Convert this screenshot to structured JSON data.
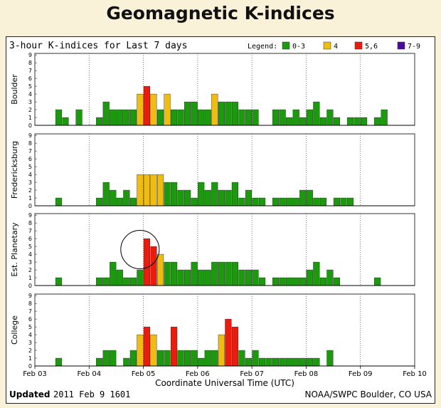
{
  "page": {
    "title": "Geomagnetic K-indices"
  },
  "chart_data": {
    "type": "bar",
    "title": "3-hour K-indices for Last 7 days",
    "legend": {
      "title": "Legend:",
      "items": [
        {
          "label": "0-3",
          "color": "#1a9a0c"
        },
        {
          "label": "4",
          "color": "#f0bc10"
        },
        {
          "label": "5,6",
          "color": "#ee1a0c"
        },
        {
          "label": "7-9",
          "color": "#4a0a9a"
        }
      ],
      "placement": "top-right"
    },
    "xlabel": "Coordinate Universal Time (UTC)",
    "x_ticks": [
      "Feb 03",
      "Feb 04",
      "Feb 05",
      "Feb 06",
      "Feb 07",
      "Feb 08",
      "Feb 09",
      "Feb 10"
    ],
    "ylim": [
      0,
      9
    ],
    "y_ticks": [
      "0",
      "1",
      "2",
      "3",
      "4",
      "5",
      "6",
      "7",
      "8",
      "9"
    ],
    "grid": "vertical dotted at day boundaries",
    "panels": [
      {
        "name": "Boulder",
        "values": [
          0,
          0,
          0,
          2,
          1,
          0,
          2,
          0,
          0,
          1,
          3,
          2,
          2,
          2,
          2,
          4,
          5,
          4,
          2,
          4,
          2,
          2,
          3,
          3,
          2,
          2,
          4,
          3,
          3,
          3,
          2,
          2,
          2,
          0,
          0,
          2,
          2,
          1,
          2,
          1,
          2,
          3,
          1,
          2,
          1,
          0,
          1,
          1,
          1,
          0,
          1,
          2,
          0
        ]
      },
      {
        "name": "Fredericksburg",
        "values": [
          0,
          0,
          0,
          1,
          0,
          0,
          0,
          0,
          0,
          1,
          3,
          2,
          1,
          2,
          1,
          4,
          4,
          4,
          4,
          3,
          3,
          2,
          2,
          1,
          3,
          2,
          3,
          2,
          2,
          3,
          1,
          2,
          1,
          1,
          0,
          1,
          1,
          1,
          1,
          2,
          2,
          1,
          1,
          0,
          1,
          1,
          1
        ]
      },
      {
        "name": "Est. Planetary",
        "values": [
          0,
          0,
          0,
          1,
          0,
          0,
          0,
          0,
          0,
          1,
          1,
          3,
          2,
          1,
          1,
          2,
          6,
          5,
          4,
          3,
          3,
          2,
          2,
          3,
          2,
          2,
          3,
          3,
          3,
          3,
          2,
          2,
          2,
          1,
          0,
          1,
          1,
          1,
          1,
          1,
          2,
          3,
          1,
          2,
          1,
          0,
          0,
          0,
          0,
          0,
          1,
          0,
          0
        ]
      },
      {
        "name": "College",
        "values": [
          0,
          0,
          0,
          1,
          0,
          0,
          0,
          0,
          0,
          1,
          2,
          2,
          0,
          1,
          2,
          4,
          5,
          4,
          2,
          2,
          5,
          2,
          2,
          2,
          1,
          2,
          2,
          4,
          6,
          5,
          2,
          1,
          2,
          1,
          1,
          1,
          1,
          1,
          1,
          1,
          1,
          1,
          0,
          2,
          0,
          0,
          0,
          0,
          0,
          0
        ]
      }
    ],
    "annotations": [
      {
        "type": "circle",
        "panel": "Est. Planetary",
        "day": "Feb 05",
        "note": "highlighted peak"
      }
    ]
  },
  "footer": {
    "updated_label": "Updated",
    "updated_value": "2011 Feb  9 1601",
    "source": "NOAA/SWPC Boulder, CO USA"
  }
}
